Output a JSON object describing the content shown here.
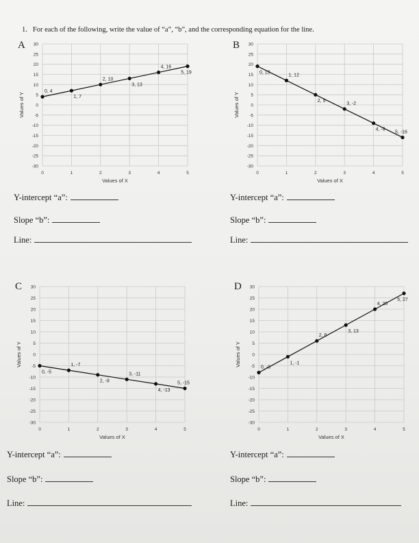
{
  "instruction": {
    "number": "1.",
    "text": "For each of the following, write the value of “a”, “b”, and the corresponding equation for the line."
  },
  "questions": {
    "intercept_label": "Y-intercept “a”:",
    "slope_label": "Slope “b”:",
    "line_label": "Line:"
  },
  "colors": {
    "line": "#111111",
    "grid": "#c9c9c9",
    "axis_text": "#333333"
  },
  "chart_data": [
    {
      "letter": "A",
      "type": "line",
      "xlabel": "Values of X",
      "ylabel": "Values of Y",
      "xlim": [
        0,
        5
      ],
      "ylim": [
        -30,
        30
      ],
      "x_ticks": [
        "0",
        "1",
        "2",
        "3",
        "4",
        "5"
      ],
      "y_ticks": [
        "30",
        "25",
        "20",
        "15",
        "10",
        "5",
        "0",
        "-5",
        "-10",
        "-15",
        "-20",
        "-25",
        "-30"
      ],
      "grid": true,
      "points": [
        {
          "x": 0,
          "y": 4,
          "label": "0, 4"
        },
        {
          "x": 1,
          "y": 7,
          "label": "1, 7"
        },
        {
          "x": 2,
          "y": 10,
          "label": "2, 10"
        },
        {
          "x": 3,
          "y": 13,
          "label": "3, 13"
        },
        {
          "x": 4,
          "y": 16,
          "label": "4, 16"
        },
        {
          "x": 5,
          "y": 19,
          "label": "5, 19"
        }
      ]
    },
    {
      "letter": "B",
      "type": "line",
      "xlabel": "Values of X",
      "ylabel": "Values of Y",
      "xlim": [
        0,
        5
      ],
      "ylim": [
        -30,
        30
      ],
      "x_ticks": [
        "0",
        "1",
        "2",
        "3",
        "4",
        "5"
      ],
      "y_ticks": [
        "30",
        "25",
        "20",
        "15",
        "10",
        "5",
        "0",
        "-5",
        "-10",
        "-15",
        "-20",
        "-25",
        "-30"
      ],
      "grid": true,
      "points": [
        {
          "x": 0,
          "y": 19,
          "label": "0, 19"
        },
        {
          "x": 1,
          "y": 12,
          "label": "1, 12"
        },
        {
          "x": 2,
          "y": 5,
          "label": "2, 5"
        },
        {
          "x": 3,
          "y": -2,
          "label": "3, -2"
        },
        {
          "x": 4,
          "y": -9,
          "label": "4, -9"
        },
        {
          "x": 5,
          "y": -16,
          "label": "5, -16"
        }
      ]
    },
    {
      "letter": "C",
      "type": "line",
      "xlabel": "Values of X",
      "ylabel": "Values of Y",
      "xlim": [
        0,
        5
      ],
      "ylim": [
        -30,
        30
      ],
      "x_ticks": [
        "0",
        "1",
        "2",
        "3",
        "4",
        "5"
      ],
      "y_ticks": [
        "30",
        "25",
        "20",
        "15",
        "10",
        "5",
        "0",
        "-5",
        "-10",
        "-15",
        "-20",
        "-25",
        "-30"
      ],
      "grid": true,
      "points": [
        {
          "x": 0,
          "y": -5,
          "label": "0, -5"
        },
        {
          "x": 1,
          "y": -7,
          "label": "1, -7"
        },
        {
          "x": 2,
          "y": -9,
          "label": "2, -9"
        },
        {
          "x": 3,
          "y": -11,
          "label": "3, -11"
        },
        {
          "x": 4,
          "y": -13,
          "label": "4, -13"
        },
        {
          "x": 5,
          "y": -15,
          "label": "5, -15"
        }
      ]
    },
    {
      "letter": "D",
      "type": "line",
      "xlabel": "Values of X",
      "ylabel": "Values of Y",
      "xlim": [
        0,
        5
      ],
      "ylim": [
        -30,
        30
      ],
      "x_ticks": [
        "0",
        "1",
        "2",
        "3",
        "4",
        "5"
      ],
      "y_ticks": [
        "30",
        "25",
        "20",
        "15",
        "10",
        "5",
        "0",
        "-5",
        "-10",
        "-15",
        "-20",
        "-25",
        "-30"
      ],
      "grid": true,
      "points": [
        {
          "x": 0,
          "y": -8,
          "label": "0, -8"
        },
        {
          "x": 1,
          "y": -1,
          "label": "1, -1"
        },
        {
          "x": 2,
          "y": 6,
          "label": "2, 6"
        },
        {
          "x": 3,
          "y": 13,
          "label": "3, 13"
        },
        {
          "x": 4,
          "y": 20,
          "label": "4, 20"
        },
        {
          "x": 5,
          "y": 27,
          "label": "5, 27"
        }
      ]
    }
  ]
}
